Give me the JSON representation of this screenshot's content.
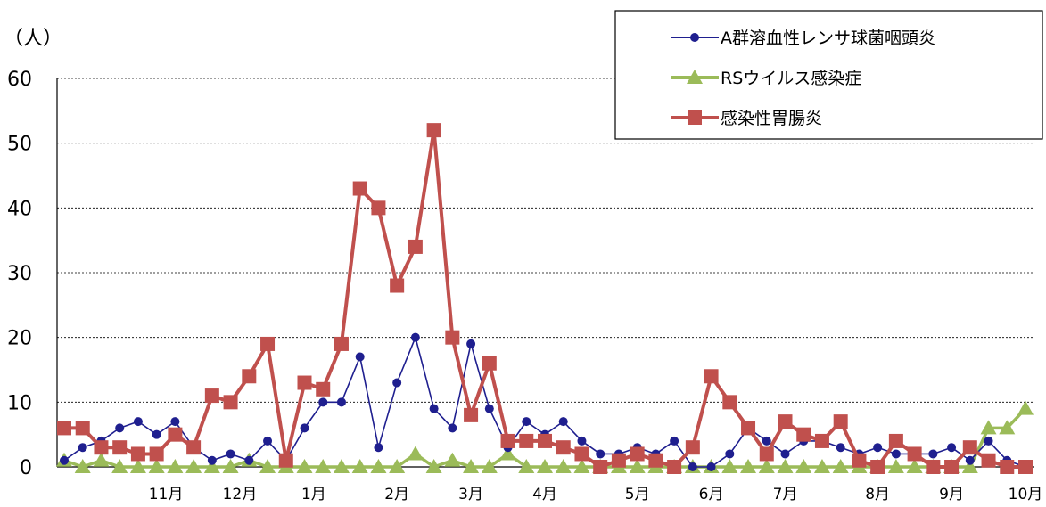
{
  "chart_data": {
    "type": "line",
    "ylabel": "（人）",
    "ylim": [
      0,
      60
    ],
    "yticks": [
      0,
      10,
      20,
      30,
      40,
      50,
      60
    ],
    "grid": true,
    "legend_position": "top-right",
    "x_month_labels": [
      {
        "label": "11月",
        "at_week": 6.5
      },
      {
        "label": "12月",
        "at_week": 10.5
      },
      {
        "label": "1月",
        "at_week": 14.5
      },
      {
        "label": "2月",
        "at_week": 19
      },
      {
        "label": "3月",
        "at_week": 23
      },
      {
        "label": "4月",
        "at_week": 27
      },
      {
        "label": "5月",
        "at_week": 32
      },
      {
        "label": "6月",
        "at_week": 36
      },
      {
        "label": "7月",
        "at_week": 40
      },
      {
        "label": "8月",
        "at_week": 45
      },
      {
        "label": "9月",
        "at_week": 49
      },
      {
        "label": "10月",
        "at_week": 53
      }
    ],
    "weeks": 53,
    "series": [
      {
        "name": "A群溶血性レンサ球菌咽頭炎",
        "color": "#1f1f8f",
        "marker": "circle",
        "values": [
          1,
          3,
          4,
          6,
          7,
          5,
          7,
          3,
          1,
          2,
          1,
          4,
          1,
          6,
          10,
          10,
          17,
          3,
          13,
          20,
          9,
          6,
          19,
          9,
          3,
          7,
          5,
          7,
          4,
          2,
          2,
          3,
          2,
          4,
          0,
          0,
          2,
          6,
          4,
          2,
          4,
          4,
          3,
          2,
          3,
          2,
          2,
          2,
          3,
          1,
          4,
          1,
          0
        ]
      },
      {
        "name": "RSウイルス感染症",
        "color": "#9bbb59",
        "marker": "triangle",
        "values": [
          1,
          0,
          1,
          0,
          0,
          0,
          0,
          0,
          0,
          0,
          1,
          0,
          0,
          0,
          0,
          0,
          0,
          0,
          0,
          2,
          0,
          1,
          0,
          0,
          2,
          0,
          0,
          0,
          0,
          0,
          0,
          0,
          0,
          0,
          0,
          0,
          0,
          0,
          0,
          0,
          0,
          0,
          0,
          0,
          0,
          0,
          0,
          0,
          0,
          0,
          6,
          6,
          9
        ]
      },
      {
        "name": "感染性胃腸炎",
        "color": "#c0504d",
        "marker": "square",
        "values": [
          6,
          6,
          3,
          3,
          2,
          2,
          5,
          3,
          11,
          10,
          14,
          19,
          1,
          13,
          12,
          19,
          43,
          40,
          28,
          34,
          52,
          20,
          8,
          16,
          4,
          4,
          4,
          3,
          2,
          0,
          1,
          2,
          1,
          0,
          3,
          14,
          10,
          6,
          2,
          7,
          5,
          4,
          7,
          1,
          0,
          4,
          2,
          0,
          0,
          3,
          1,
          0,
          0
        ]
      }
    ]
  }
}
